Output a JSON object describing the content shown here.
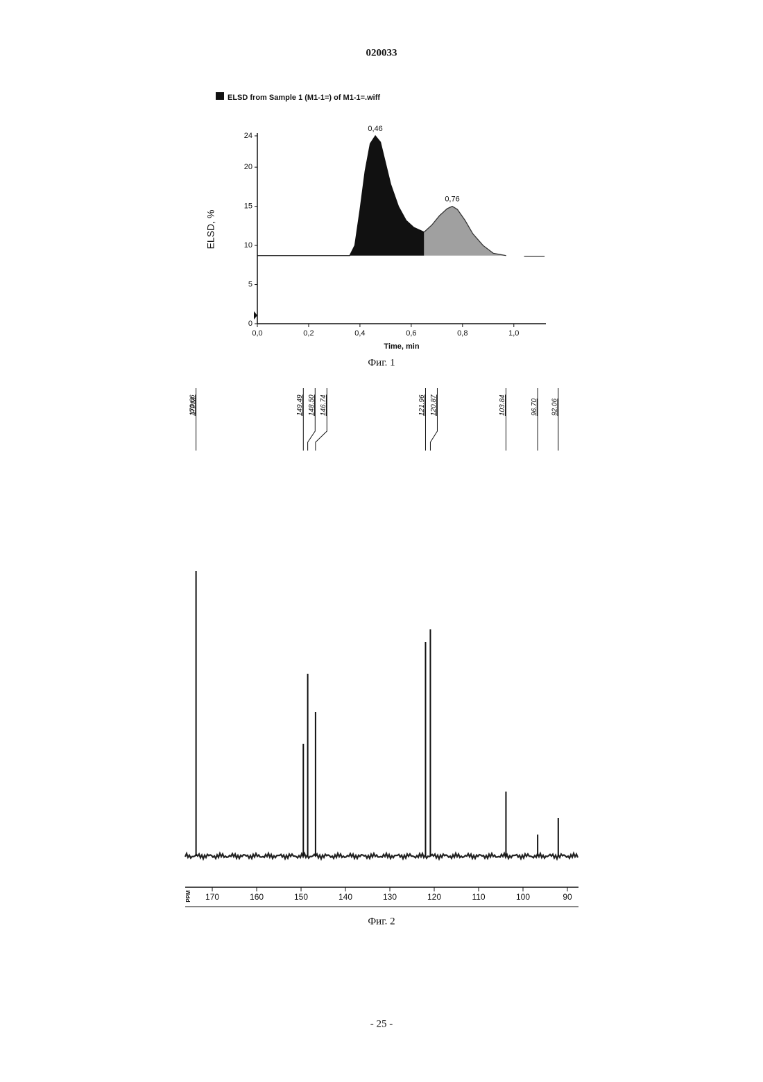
{
  "header": "020033",
  "footer": "- 25 -",
  "chart_data": [
    {
      "type": "area",
      "caption": "Фиг. 1",
      "xlabel": "Time, min",
      "ylabel": "ELSD, %",
      "xlim": [
        0,
        1.125
      ],
      "ylim": [
        0,
        24
      ],
      "xticks": [
        {
          "value": 0,
          "label": "0,0"
        },
        {
          "value": 0.2,
          "label": "0,2"
        },
        {
          "value": 0.4,
          "label": "0,4"
        },
        {
          "value": 0.6,
          "label": "0,6"
        },
        {
          "value": 0.8,
          "label": "0,8"
        },
        {
          "value": 1.0,
          "label": "1,0"
        }
      ],
      "yticks": [
        0,
        5,
        10,
        15,
        20,
        24
      ],
      "series": [
        {
          "name": "ELSD from Sample 1 (M1-1=) of M1-1=.wiff",
          "color": "#111111",
          "x": [
            0,
            0.1,
            0.2,
            0.3,
            0.36,
            0.38,
            0.4,
            0.42,
            0.44,
            0.46,
            0.48,
            0.5,
            0.52,
            0.55,
            0.58,
            0.61,
            0.65
          ],
          "values": [
            8.7,
            8.7,
            8.7,
            8.7,
            8.7,
            10.0,
            14.5,
            19.5,
            23.0,
            24.0,
            23.2,
            20.5,
            17.8,
            15.0,
            13.2,
            12.3,
            11.7
          ]
        },
        {
          "color": "#a0a0a0",
          "x": [
            0.65,
            0.68,
            0.71,
            0.74,
            0.76,
            0.78,
            0.81,
            0.84,
            0.88,
            0.92,
            0.97,
            1.0,
            1.04,
            1.12
          ],
          "values": [
            11.7,
            12.6,
            13.8,
            14.7,
            15.0,
            14.6,
            13.2,
            11.5,
            10.0,
            9.0,
            8.7,
            null,
            8.6,
            8.6
          ]
        }
      ],
      "annotations": [
        {
          "text": "0,46",
          "x": 0.46,
          "y": 24
        },
        {
          "text": "0,76",
          "x": 0.76,
          "y": 15
        }
      ]
    },
    {
      "type": "stem",
      "caption": "Фиг. 2",
      "xlabel": "PPM",
      "label_header": "PPM",
      "xlim": [
        176.1,
        87.5
      ],
      "xticks": [
        170,
        160,
        150,
        140,
        130,
        120,
        110,
        100,
        90
      ],
      "color": "#111111",
      "x": [
        173.66,
        149.49,
        148.5,
        146.74,
        121.96,
        120.87,
        103.84,
        96.7,
        92.06
      ],
      "peak_labels": [
        "173.66",
        "149.49",
        "148.50",
        "146.74",
        "121.96",
        "120.87",
        "103.84",
        "96.70",
        "92.06"
      ],
      "values": [
        411,
        162,
        263,
        208,
        309,
        327,
        93,
        31,
        55
      ]
    }
  ]
}
